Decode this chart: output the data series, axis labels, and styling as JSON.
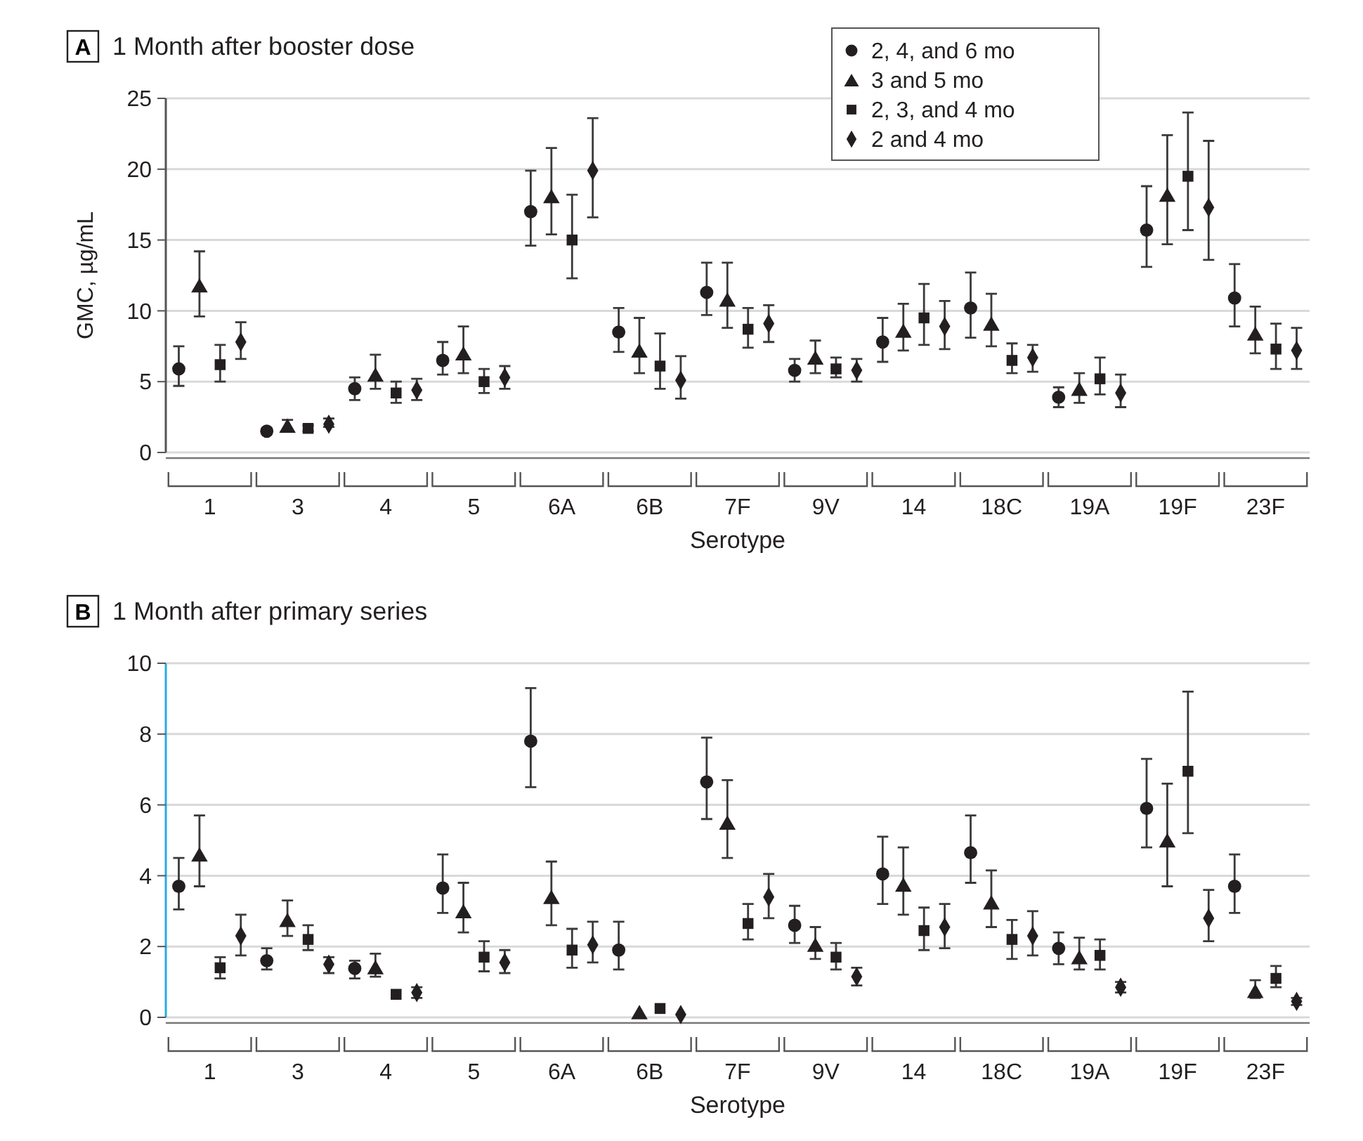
{
  "chart_data": [
    {
      "type": "scatter",
      "title": "1 Month after booster dose",
      "annotations": [
        "A"
      ],
      "xlabel": "Serotype",
      "ylabel": "GMC, µg/mL",
      "categories": [
        "1",
        "3",
        "4",
        "5",
        "6A",
        "6B",
        "7F",
        "9V",
        "14",
        "18C",
        "19A",
        "19F",
        "23F"
      ],
      "ylim": [
        0,
        25
      ],
      "yticks": [
        0,
        5,
        10,
        15,
        20,
        25
      ],
      "grid": "y",
      "legend": "top right",
      "series": [
        {
          "name": "2, 4, and 6 mo",
          "color": "#231f20",
          "marker": "circle",
          "values": [
            5.9,
            1.5,
            4.5,
            6.5,
            17.0,
            8.5,
            11.3,
            5.8,
            7.8,
            10.2,
            3.9,
            15.7,
            10.9
          ],
          "errors": [
            [
              4.7,
              7.5
            ],
            [
              1.3,
              1.7
            ],
            [
              3.7,
              5.3
            ],
            [
              5.5,
              7.8
            ],
            [
              14.6,
              19.9
            ],
            [
              7.1,
              10.2
            ],
            [
              9.7,
              13.4
            ],
            [
              5.0,
              6.6
            ],
            [
              6.4,
              9.5
            ],
            [
              8.1,
              12.7
            ],
            [
              3.2,
              4.6
            ],
            [
              13.1,
              18.8
            ],
            [
              8.9,
              13.3
            ]
          ]
        },
        {
          "name": "3 and 5 mo",
          "color": "#231f20",
          "marker": "triangle",
          "values": [
            11.8,
            1.9,
            5.5,
            7.0,
            18.1,
            7.2,
            10.8,
            6.7,
            8.6,
            9.1,
            4.5,
            18.2,
            8.4
          ],
          "errors": [
            [
              9.6,
              14.2
            ],
            [
              1.6,
              2.3
            ],
            [
              4.5,
              6.9
            ],
            [
              5.6,
              8.9
            ],
            [
              15.4,
              21.5
            ],
            [
              5.6,
              9.5
            ],
            [
              8.8,
              13.4
            ],
            [
              5.6,
              7.9
            ],
            [
              7.2,
              10.5
            ],
            [
              7.5,
              11.2
            ],
            [
              3.5,
              5.6
            ],
            [
              14.7,
              22.4
            ],
            [
              7.0,
              10.3
            ]
          ]
        },
        {
          "name": "2, 3, and 4 mo",
          "color": "#231f20",
          "marker": "square",
          "values": [
            6.2,
            1.7,
            4.2,
            5.0,
            15.0,
            6.1,
            8.7,
            5.9,
            9.5,
            6.5,
            5.2,
            19.5,
            7.3
          ],
          "errors": [
            [
              5.0,
              7.6
            ],
            [
              1.5,
              1.9
            ],
            [
              3.5,
              5.0
            ],
            [
              4.2,
              5.9
            ],
            [
              12.3,
              18.2
            ],
            [
              4.5,
              8.4
            ],
            [
              7.4,
              10.2
            ],
            [
              5.3,
              6.7
            ],
            [
              7.6,
              11.9
            ],
            [
              5.6,
              7.7
            ],
            [
              4.1,
              6.7
            ],
            [
              15.7,
              24.0
            ],
            [
              5.9,
              9.1
            ]
          ]
        },
        {
          "name": "2 and 4 mo",
          "color": "#231f20",
          "marker": "diamond",
          "values": [
            7.8,
            2.0,
            4.4,
            5.3,
            19.9,
            5.1,
            9.1,
            5.8,
            8.9,
            6.7,
            4.2,
            17.3,
            7.2
          ],
          "errors": [
            [
              6.6,
              9.2
            ],
            [
              1.8,
              2.4
            ],
            [
              3.7,
              5.2
            ],
            [
              4.5,
              6.1
            ],
            [
              16.6,
              23.6
            ],
            [
              3.8,
              6.8
            ],
            [
              7.8,
              10.4
            ],
            [
              5.0,
              6.6
            ],
            [
              7.3,
              10.7
            ],
            [
              5.7,
              7.6
            ],
            [
              3.2,
              5.5
            ],
            [
              13.6,
              22.0
            ],
            [
              5.9,
              8.8
            ]
          ]
        }
      ]
    },
    {
      "type": "scatter",
      "title": "1 Month after primary series",
      "annotations": [
        "B"
      ],
      "xlabel": "Serotype",
      "categories": [
        "1",
        "3",
        "4",
        "5",
        "6A",
        "6B",
        "7F",
        "9V",
        "14",
        "18C",
        "19A",
        "19F",
        "23F"
      ],
      "ylim": [
        0,
        10
      ],
      "yticks": [
        0,
        2,
        4,
        6,
        8,
        10
      ],
      "grid": "y",
      "series": [
        {
          "color": "#231f20",
          "marker": "circle",
          "values": [
            3.7,
            1.6,
            1.38,
            3.65,
            7.8,
            1.9,
            6.65,
            2.6,
            4.05,
            4.65,
            1.95,
            5.9,
            3.7
          ],
          "errors": [
            [
              3.05,
              4.5
            ],
            [
              1.35,
              1.95
            ],
            [
              1.1,
              1.6
            ],
            [
              2.95,
              4.6
            ],
            [
              6.5,
              9.3
            ],
            [
              1.35,
              2.7
            ],
            [
              5.6,
              7.9
            ],
            [
              2.1,
              3.15
            ],
            [
              3.2,
              5.1
            ],
            [
              3.8,
              5.7
            ],
            [
              1.5,
              2.4
            ],
            [
              4.8,
              7.3
            ],
            [
              2.95,
              4.6
            ]
          ]
        },
        {
          "color": "#231f20",
          "marker": "triangle",
          "values": [
            4.6,
            2.75,
            1.42,
            3.0,
            3.4,
            0.15,
            5.5,
            2.05,
            3.75,
            3.25,
            1.7,
            5.0,
            0.75
          ],
          "errors": [
            [
              3.7,
              5.7
            ],
            [
              2.3,
              3.3
            ],
            [
              1.15,
              1.8
            ],
            [
              2.4,
              3.8
            ],
            [
              2.6,
              4.4
            ],
            null,
            [
              4.5,
              6.7
            ],
            [
              1.65,
              2.55
            ],
            [
              2.9,
              4.8
            ],
            [
              2.55,
              4.15
            ],
            [
              1.35,
              2.25
            ],
            [
              3.7,
              6.6
            ],
            [
              0.55,
              1.05
            ]
          ]
        },
        {
          "color": "#231f20",
          "marker": "square",
          "values": [
            1.4,
            2.2,
            0.65,
            1.7,
            1.9,
            0.25,
            2.65,
            1.7,
            2.45,
            2.2,
            1.75,
            6.95,
            1.1
          ],
          "errors": [
            [
              1.1,
              1.7
            ],
            [
              1.9,
              2.6
            ],
            null,
            [
              1.3,
              2.15
            ],
            [
              1.4,
              2.5
            ],
            null,
            [
              2.2,
              3.2
            ],
            [
              1.35,
              2.1
            ],
            [
              1.9,
              3.1
            ],
            [
              1.65,
              2.75
            ],
            [
              1.35,
              2.2
            ],
            [
              5.2,
              9.2
            ],
            [
              0.85,
              1.45
            ]
          ]
        },
        {
          "color": "#231f20",
          "marker": "diamond",
          "values": [
            2.3,
            1.5,
            0.7,
            1.55,
            2.05,
            0.08,
            3.4,
            1.15,
            2.55,
            2.3,
            0.85,
            2.8,
            0.45
          ],
          "errors": [
            [
              1.75,
              2.9
            ],
            [
              1.25,
              1.7
            ],
            [
              0.55,
              0.85
            ],
            [
              1.25,
              1.9
            ],
            [
              1.55,
              2.7
            ],
            null,
            [
              2.8,
              4.05
            ],
            [
              0.9,
              1.4
            ],
            [
              1.95,
              3.2
            ],
            [
              1.75,
              3.0
            ],
            [
              0.7,
              1.0
            ],
            [
              2.15,
              3.6
            ],
            [
              0.35,
              0.55
            ]
          ]
        }
      ]
    }
  ]
}
